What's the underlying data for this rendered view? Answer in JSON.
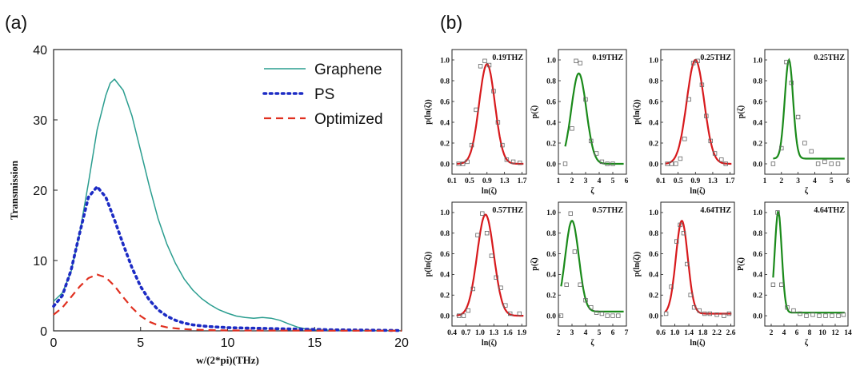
{
  "panel_labels": {
    "a": "(a)",
    "b": "(b)"
  },
  "colors": {
    "graphene": "#2a9d8f",
    "ps": "#1c2bc4",
    "optimized": "#e03020",
    "red_fit": "#d7191c",
    "green_fit": "#1a8a1a",
    "marker": "#666666"
  },
  "chart_data": [
    {
      "type": "line",
      "title": "",
      "xlabel": "w/(2*pi)(THz)",
      "ylabel": "Transmission",
      "xlim": [
        0,
        20
      ],
      "ylim": [
        0,
        40
      ],
      "xticks": [
        0,
        5,
        10,
        15,
        20
      ],
      "yticks": [
        0,
        10,
        20,
        30,
        40
      ],
      "legend_position": "top-right",
      "series": [
        {
          "name": "Graphene",
          "style": "solid",
          "color": "#2a9d8f",
          "x": [
            0,
            0.5,
            1,
            1.5,
            2,
            2.5,
            3,
            3.25,
            3.5,
            4,
            4.5,
            5,
            5.5,
            6,
            6.5,
            7,
            7.5,
            8,
            8.5,
            9,
            9.5,
            10,
            10.5,
            11,
            11.5,
            12,
            12.5,
            13,
            13.5,
            14,
            14.5,
            15,
            16,
            17,
            18,
            19,
            20
          ],
          "y": [
            4.2,
            5.4,
            8.4,
            13.9,
            21.0,
            28.6,
            33.5,
            35.2,
            35.8,
            34.2,
            30.6,
            25.6,
            20.6,
            16.0,
            12.4,
            9.6,
            7.4,
            5.8,
            4.6,
            3.7,
            3.0,
            2.5,
            2.1,
            1.9,
            1.8,
            1.9,
            1.8,
            1.5,
            1.0,
            0.55,
            0.25,
            0.12,
            0.07,
            0.05,
            0.04,
            0.03,
            0.03
          ]
        },
        {
          "name": "PS",
          "style": "dotted",
          "color": "#1c2bc4",
          "x": [
            0,
            0.5,
            1,
            1.5,
            2,
            2.5,
            3,
            3.5,
            4,
            4.5,
            5,
            5.5,
            6,
            6.5,
            7,
            7.5,
            8,
            8.5,
            9,
            10,
            11,
            12,
            13,
            14,
            15,
            16,
            17,
            18,
            19,
            20
          ],
          "y": [
            3.5,
            5.0,
            8.6,
            13.9,
            19.0,
            20.5,
            19.0,
            15.8,
            12.3,
            9.0,
            6.3,
            4.4,
            3.0,
            2.1,
            1.5,
            1.1,
            0.85,
            0.7,
            0.6,
            0.45,
            0.4,
            0.35,
            0.3,
            0.25,
            0.2,
            0.15,
            0.12,
            0.1,
            0.08,
            0.05
          ]
        },
        {
          "name": "Optimized",
          "style": "dashed",
          "color": "#e03020",
          "x": [
            0,
            0.5,
            1,
            1.5,
            2,
            2.5,
            3,
            3.5,
            4,
            4.5,
            5,
            5.5,
            6,
            6.5,
            7,
            7.5,
            8,
            8.5,
            9,
            10,
            12,
            14,
            16,
            18,
            20
          ],
          "y": [
            2.3,
            3.3,
            4.8,
            6.3,
            7.5,
            8.0,
            7.6,
            6.4,
            4.8,
            3.3,
            2.1,
            1.3,
            0.8,
            0.5,
            0.35,
            0.25,
            0.18,
            0.14,
            0.1,
            0.06,
            0.04,
            0.03,
            0.02,
            0.02,
            0.01
          ]
        }
      ]
    },
    {
      "type": "scatter",
      "annotation": "0.19THZ",
      "xlabel": "ln(ζ)",
      "ylabel": "p(ln(ζ))",
      "fit_color": "red",
      "xlim": [
        0.1,
        1.8
      ],
      "ylim": [
        -0.1,
        1.1
      ],
      "xticks": [
        "0.1",
        "0.5",
        "0.9",
        "1.3",
        "1.7"
      ],
      "yticks": [
        "0.0",
        "0.2",
        "0.4",
        "0.6",
        "0.8",
        "1.0"
      ],
      "fit": {
        "mu": 0.9,
        "sigma": 0.18,
        "amp": 0.96,
        "base": 0.0
      },
      "x": [
        0.25,
        0.35,
        0.45,
        0.55,
        0.65,
        0.75,
        0.85,
        0.95,
        1.05,
        1.15,
        1.25,
        1.35,
        1.5,
        1.65
      ],
      "y": [
        0.0,
        0.0,
        0.02,
        0.18,
        0.52,
        0.94,
        0.99,
        0.95,
        0.7,
        0.4,
        0.18,
        0.04,
        0.02,
        0.01
      ]
    },
    {
      "type": "scatter",
      "annotation": "0.19THZ",
      "xlabel": "ζ",
      "ylabel": "p(ζ)",
      "fit_color": "green",
      "xlim": [
        1,
        6
      ],
      "ylim": [
        -0.1,
        1.1
      ],
      "xticks": [
        "1",
        "2",
        "3",
        "4",
        "5",
        "6"
      ],
      "yticks": [
        "0.0",
        "0.2",
        "0.4",
        "0.6",
        "0.8",
        "1.0"
      ],
      "fit": {
        "mu": 2.5,
        "sigma": 0.55,
        "amp": 0.87,
        "base": 0.0,
        "xstart": 1.5
      },
      "x": [
        1.5,
        2.0,
        2.3,
        2.6,
        3.0,
        3.4,
        3.8,
        4.2,
        4.6,
        5.0
      ],
      "y": [
        0.0,
        0.34,
        0.99,
        0.97,
        0.62,
        0.22,
        0.1,
        0.02,
        0.0,
        0.0
      ]
    },
    {
      "type": "scatter",
      "annotation": "0.25THZ",
      "xlabel": "ln(ζ)",
      "ylabel": "p(ln(ζ))",
      "fit_color": "red",
      "xlim": [
        0.1,
        1.8
      ],
      "ylim": [
        -0.1,
        1.1
      ],
      "xticks": [
        "0.1",
        "0.5",
        "0.9",
        "1.3",
        "1.7"
      ],
      "yticks": [
        "0.0",
        "0.2",
        "0.4",
        "0.6",
        "0.8",
        "1.0"
      ],
      "fit": {
        "mu": 0.9,
        "sigma": 0.2,
        "amp": 1.0,
        "base": 0.0
      },
      "x": [
        0.25,
        0.35,
        0.45,
        0.55,
        0.65,
        0.75,
        0.85,
        0.95,
        1.05,
        1.15,
        1.25,
        1.35,
        1.5,
        1.6
      ],
      "y": [
        0.0,
        0.0,
        0.0,
        0.05,
        0.24,
        0.62,
        0.97,
        0.99,
        0.76,
        0.46,
        0.22,
        0.1,
        0.04,
        0.0
      ]
    },
    {
      "type": "scatter",
      "annotation": "0.25THZ",
      "xlabel": "ζ",
      "ylabel": "p(ζ)",
      "fit_color": "green",
      "xlim": [
        1,
        6
      ],
      "ylim": [
        -0.1,
        1.1
      ],
      "xticks": [
        "1",
        "2",
        "3",
        "4",
        "5",
        "6"
      ],
      "yticks": [
        "0.0",
        "0.2",
        "0.4",
        "0.6",
        "0.8",
        "1.0"
      ],
      "fit": {
        "mu": 2.45,
        "sigma": 0.25,
        "amp": 0.95,
        "base": 0.05,
        "xstart": 1.5
      },
      "x": [
        1.5,
        2.0,
        2.3,
        2.6,
        3.0,
        3.4,
        3.8,
        4.2,
        4.6,
        5.0,
        5.4
      ],
      "y": [
        0.0,
        0.15,
        0.98,
        0.78,
        0.45,
        0.2,
        0.12,
        0.0,
        0.02,
        0.0,
        0.0
      ]
    },
    {
      "type": "scatter",
      "annotation": "0.57THZ",
      "xlabel": "ln(ζ)",
      "ylabel": "p(ln(ζ))",
      "fit_color": "red",
      "xlim": [
        0.4,
        2.0
      ],
      "ylim": [
        -0.1,
        1.1
      ],
      "xticks": [
        "0.4",
        "0.7",
        "1.0",
        "1.3",
        "1.6",
        "1.9"
      ],
      "yticks": [
        "0.0",
        "0.2",
        "0.4",
        "0.6",
        "0.8",
        "1.0"
      ],
      "fit": {
        "mu": 1.12,
        "sigma": 0.18,
        "amp": 0.98,
        "base": 0.0
      },
      "x": [
        0.55,
        0.65,
        0.75,
        0.85,
        0.95,
        1.05,
        1.15,
        1.25,
        1.35,
        1.45,
        1.55,
        1.65,
        1.85
      ],
      "y": [
        0.0,
        0.0,
        0.05,
        0.26,
        0.78,
        0.99,
        0.8,
        0.58,
        0.37,
        0.27,
        0.1,
        0.02,
        0.02
      ]
    },
    {
      "type": "scatter",
      "annotation": "0.57THZ",
      "xlabel": "ζ",
      "ylabel": "p(ζ)",
      "fit_color": "green",
      "xlim": [
        2,
        7
      ],
      "ylim": [
        -0.1,
        1.1
      ],
      "xticks": [
        "2",
        "3",
        "4",
        "5",
        "6",
        "7"
      ],
      "yticks": [
        "0.0",
        "0.2",
        "0.4",
        "0.6",
        "0.8",
        "1.0"
      ],
      "fit": {
        "mu": 3.0,
        "sigma": 0.5,
        "amp": 0.88,
        "base": 0.04,
        "xstart": 2.2
      },
      "x": [
        2.2,
        2.6,
        2.9,
        3.2,
        3.6,
        4.0,
        4.4,
        4.8,
        5.2,
        5.6,
        6.0,
        6.4
      ],
      "y": [
        0.0,
        0.3,
        0.99,
        0.62,
        0.3,
        0.15,
        0.08,
        0.03,
        0.02,
        0.0,
        0.0,
        0.0
      ]
    },
    {
      "type": "scatter",
      "annotation": "4.64THZ",
      "xlabel": "ln(ζ)",
      "ylabel": "p(ln(ζ))",
      "fit_color": "red",
      "xlim": [
        0.6,
        2.7
      ],
      "ylim": [
        -0.1,
        1.1
      ],
      "xticks": [
        "0.6",
        "1.0",
        "1.4",
        "1.8",
        "2.2",
        "2.6"
      ],
      "yticks": [
        "0.0",
        "0.2",
        "0.4",
        "0.6",
        "0.8",
        "1.0"
      ],
      "fit": {
        "mu": 1.2,
        "sigma": 0.17,
        "amp": 0.9,
        "base": 0.02
      },
      "x": [
        0.75,
        0.9,
        1.05,
        1.15,
        1.25,
        1.35,
        1.45,
        1.55,
        1.7,
        1.85,
        2.0,
        2.2,
        2.4,
        2.55
      ],
      "y": [
        0.02,
        0.28,
        0.72,
        0.88,
        0.8,
        0.5,
        0.2,
        0.08,
        0.05,
        0.02,
        0.02,
        0.01,
        0.0,
        0.02
      ]
    },
    {
      "type": "scatter",
      "annotation": "4.64THZ",
      "xlabel": "ζ",
      "ylabel": "P(ζ)",
      "fit_color": "green",
      "xlim": [
        1,
        14
      ],
      "ylim": [
        -0.1,
        1.1
      ],
      "xticks": [
        "2",
        "4",
        "6",
        "8",
        "10",
        "12",
        "14"
      ],
      "yticks": [
        "0.0",
        "0.2",
        "0.4",
        "0.6",
        "0.8",
        "1.0"
      ],
      "fit": {
        "mu": 3.1,
        "sigma": 0.55,
        "amp": 0.98,
        "base": 0.03,
        "xstart": 2.3
      },
      "x": [
        2.3,
        3.0,
        3.6,
        4.5,
        5.5,
        6.5,
        7.5,
        8.5,
        9.5,
        10.5,
        11.5,
        12.5,
        13.3
      ],
      "y": [
        0.3,
        1.0,
        0.3,
        0.08,
        0.05,
        0.02,
        0.0,
        0.01,
        0.0,
        0.0,
        0.0,
        0.0,
        0.01
      ]
    }
  ]
}
